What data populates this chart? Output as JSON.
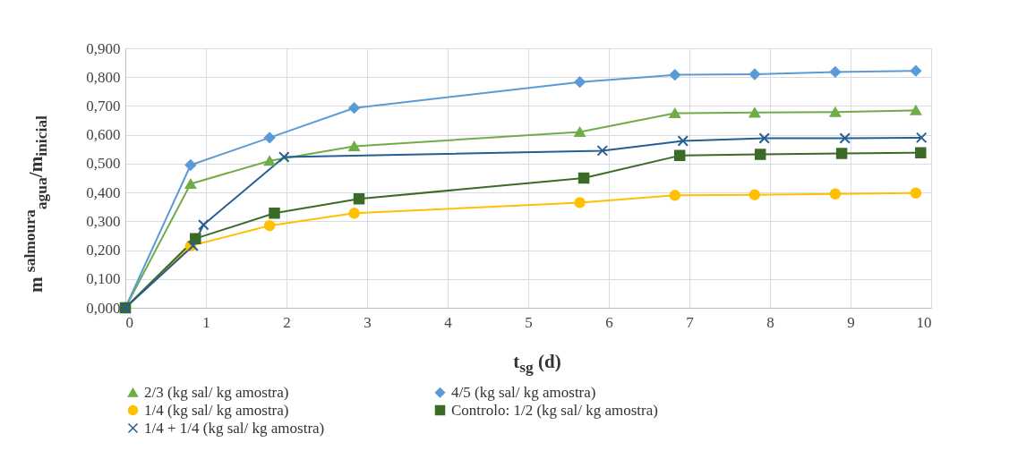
{
  "chart_data": {
    "type": "line",
    "xlabel": "t$_{sg}$ (d)",
    "ylabel": "m $^{salmoura}$$_{agua}$/m$_{inicial}$",
    "xlim": [
      0,
      10
    ],
    "xticks": [
      0,
      1,
      2,
      3,
      4,
      5,
      6,
      7,
      8,
      9,
      10
    ],
    "ylim": [
      0,
      0.9
    ],
    "yticks": [
      {
        "value": 0,
        "label": "0,000"
      },
      {
        "value": 0.1,
        "label": "0,100"
      },
      {
        "value": 0.2,
        "label": "0,200"
      },
      {
        "value": 0.3,
        "label": "0,300"
      },
      {
        "value": 0.4,
        "label": "0,400"
      },
      {
        "value": 0.5,
        "label": "0,500"
      },
      {
        "value": 0.6,
        "label": "0,600"
      },
      {
        "value": 0.7,
        "label": "0,700"
      },
      {
        "value": 0.8,
        "label": "0,800"
      },
      {
        "value": 0.9,
        "label": "0,900"
      }
    ],
    "grid": true,
    "legend": "bottom",
    "line_style": "solid",
    "series": [
      {
        "name": "2/3 (kg sal/ kg amostra)",
        "color": "#70ad47",
        "marker": "triangle",
        "x": [
          0,
          0.81,
          1.79,
          2.84,
          5.64,
          6.82,
          7.81,
          8.81,
          9.81
        ],
        "values": [
          0,
          0.43,
          0.51,
          0.56,
          0.61,
          0.675,
          0.677,
          0.679,
          0.685
        ]
      },
      {
        "name": "4/5 (kg sal/ kg amostra)",
        "color": "#5b9bd5",
        "marker": "diamond",
        "x": [
          0,
          0.81,
          1.79,
          2.84,
          5.64,
          6.82,
          7.81,
          8.81,
          9.81
        ],
        "values": [
          0,
          0.495,
          0.59,
          0.693,
          0.783,
          0.808,
          0.81,
          0.818,
          0.822
        ]
      },
      {
        "name": "1/4 (kg sal/ kg amostra)",
        "color": "#ffc000",
        "marker": "circle",
        "x": [
          0,
          0.81,
          1.79,
          2.84,
          5.64,
          6.82,
          7.81,
          8.81,
          9.81
        ],
        "values": [
          0,
          0.215,
          0.285,
          0.328,
          0.365,
          0.39,
          0.392,
          0.395,
          0.398
        ]
      },
      {
        "name": "Controlo: 1/2 (kg sal/ kg amostra)",
        "color": "#3b6b27",
        "marker": "square",
        "x": [
          0,
          0.87,
          1.85,
          2.9,
          5.69,
          6.88,
          7.88,
          8.89,
          9.87
        ],
        "values": [
          0,
          0.24,
          0.328,
          0.378,
          0.45,
          0.528,
          0.532,
          0.535,
          0.538
        ]
      },
      {
        "name": "1/4 + 1/4 (kg sal/ kg amostra)",
        "color": "#255e91",
        "marker": "cross",
        "x": [
          0,
          0.84,
          0.97,
          1.97,
          5.92,
          6.92,
          7.93,
          8.93,
          9.88
        ],
        "values": [
          0,
          0.215,
          0.288,
          0.523,
          0.545,
          0.579,
          0.588,
          0.588,
          0.59
        ]
      }
    ]
  }
}
